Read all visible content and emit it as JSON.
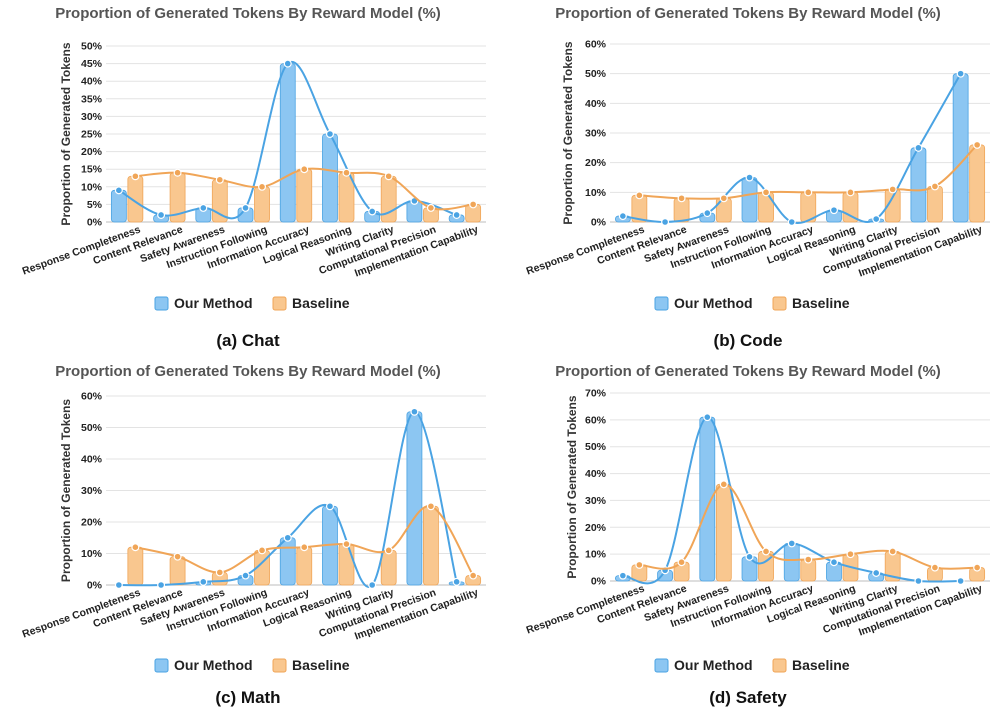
{
  "colors": {
    "ours_fill": "#8cc6f2",
    "ours_line": "#4aa3e3",
    "base_fill": "#f9c78f",
    "base_line": "#f0a557"
  },
  "legend": {
    "ours": "Our Method",
    "baseline": "Baseline"
  },
  "chart_data": [
    {
      "type": "bar",
      "caption": "(a) Chat",
      "title": "Proportion of Generated Tokens By Reward Model (%)",
      "ylabel": "Proportion of Generated Tokens",
      "xlabel": "",
      "ylim": [
        0,
        50
      ],
      "yticks": [
        "0%",
        "5%",
        "10%",
        "15%",
        "20%",
        "25%",
        "30%",
        "35%",
        "40%",
        "45%",
        "50%"
      ],
      "categories": [
        "Response Completeness",
        "Content Relevance",
        "Safety Awareness",
        "Instruction Following",
        "Information Accuracy",
        "Logical Reasoning",
        "Writing Clarity",
        "Computational Precision",
        "Implementation Capability"
      ],
      "series": [
        {
          "name": "Our Method",
          "values": [
            9,
            2,
            4,
            4,
            45,
            25,
            3,
            6,
            2
          ]
        },
        {
          "name": "Baseline",
          "values": [
            13,
            14,
            12,
            10,
            15,
            14,
            13,
            4,
            5
          ]
        }
      ]
    },
    {
      "type": "bar",
      "caption": "(b) Code",
      "title": "Proportion of Generated Tokens By Reward Model (%)",
      "ylabel": "Proportion of Generated Tokens",
      "xlabel": "",
      "ylim": [
        0,
        60
      ],
      "yticks": [
        "0%",
        "10%",
        "20%",
        "30%",
        "40%",
        "50%",
        "60%"
      ],
      "categories": [
        "Response Completeness",
        "Content Relevance",
        "Safety Awareness",
        "Instruction Following",
        "Information Accuracy",
        "Logical Reasoning",
        "Writing Clarity",
        "Computational Precision",
        "Implementation Capability"
      ],
      "series": [
        {
          "name": "Our Method",
          "values": [
            2,
            0,
            3,
            15,
            0,
            4,
            1,
            25,
            50
          ]
        },
        {
          "name": "Baseline",
          "values": [
            9,
            8,
            8,
            10,
            10,
            10,
            11,
            12,
            26
          ]
        }
      ]
    },
    {
      "type": "bar",
      "caption": "(c) Math",
      "title": "Proportion of Generated Tokens By Reward Model (%)",
      "ylabel": "Proportion of Generated Tokens",
      "xlabel": "",
      "ylim": [
        0,
        60
      ],
      "yticks": [
        "0%",
        "10%",
        "20%",
        "30%",
        "40%",
        "50%",
        "60%"
      ],
      "categories": [
        "Response Completeness",
        "Content Relevance",
        "Safety Awareness",
        "Instruction Following",
        "Information Accuracy",
        "Logical Reasoning",
        "Writing Clarity",
        "Computational Precision",
        "Implementation Capability"
      ],
      "series": [
        {
          "name": "Our Method",
          "values": [
            0,
            0,
            1,
            3,
            15,
            25,
            0,
            55,
            1
          ]
        },
        {
          "name": "Baseline",
          "values": [
            12,
            9,
            4,
            11,
            12,
            13,
            11,
            25,
            3
          ]
        }
      ]
    },
    {
      "type": "bar",
      "caption": "(d) Safety",
      "title": "Proportion of Generated Tokens By Reward Model (%)",
      "ylabel": "Proportion of Generated Tokens",
      "xlabel": "",
      "ylim": [
        0,
        70
      ],
      "yticks": [
        "0%",
        "10%",
        "20%",
        "30%",
        "40%",
        "50%",
        "60%",
        "70%"
      ],
      "categories": [
        "Response Completeness",
        "Content Relevance",
        "Safety Awareness",
        "Instruction Following",
        "Information Accuracy",
        "Logical Reasoning",
        "Writing Clarity",
        "Computational Precision",
        "Implementation Capability"
      ],
      "series": [
        {
          "name": "Our Method",
          "values": [
            2,
            4,
            61,
            9,
            14,
            7,
            3,
            0,
            0
          ]
        },
        {
          "name": "Baseline",
          "values": [
            6,
            7,
            36,
            11,
            8,
            10,
            11,
            5,
            5
          ]
        }
      ]
    }
  ]
}
